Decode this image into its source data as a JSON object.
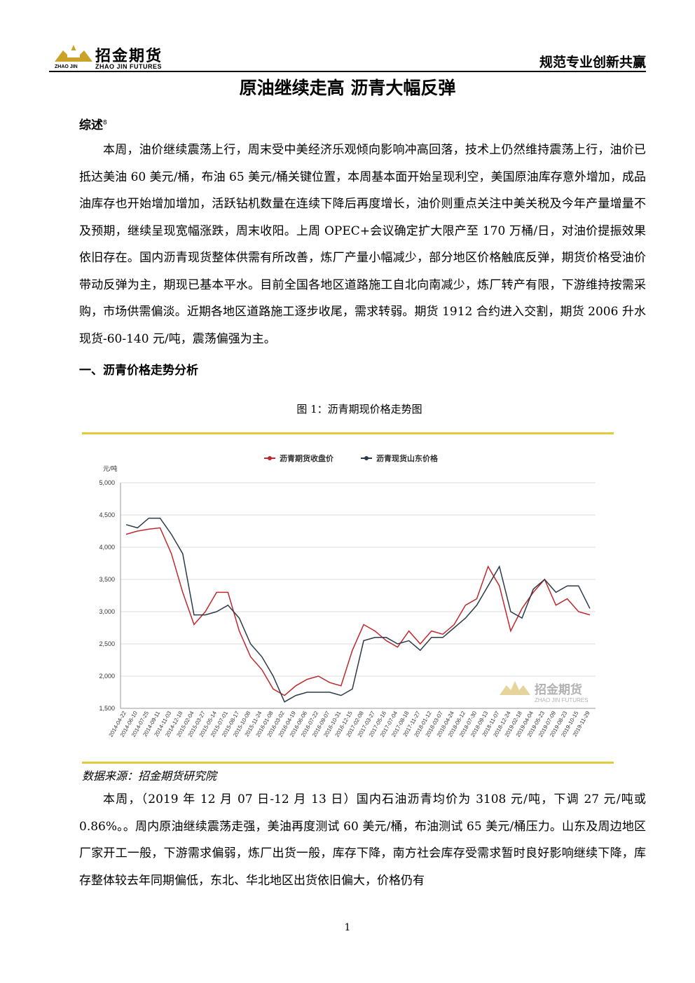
{
  "header": {
    "logo_cn": "招金期货",
    "logo_en": "ZHAO JIN FUTURES",
    "logo_small": "ZHAO JIN",
    "slogan": "规范专业创新共赢"
  },
  "title": "原油继续走高 沥青大幅反弹",
  "summary_heading": "综述",
  "summary_mark": "8",
  "summary": "本周，油价继续震荡上行，周末受中美经济乐观倾向影响冲高回落，技术上仍然维持震荡上行，油价已抵达美油 60 美元/桶，布油 65 美元/桶关键位置，本周基本面开始呈现利空，美国原油库存意外增加，成品油库存也开始增加增加，活跃钻机数量在连续下降后再度增长，油价则重点关注中美关税及今年产量增量不及预期，继续呈现宽幅涨跌，周末收阳。上周 OPEC+会议确定扩大限产至 170 万桶/日，对油价提振效果依旧存在。国内沥青现货整体供需有所改善，炼厂产量小幅减少，部分地区价格触底反弹，期货价格受油价带动反弹为主，期现已基本平水。目前全国各地区道路施工自北向南减少，炼厂转产有限，下游维持按需采购，市场供需偏淡。近期各地区道路施工逐步收尾，需求转弱。期货 1912 合约进入交割，期货 2006 升水现货-60-140 元/吨，震荡偏强为主。",
  "section_heading": "一、沥青价格走势分析",
  "figure_caption": "图 1：沥青期现价格走势图",
  "source": "数据来源：招金期货研究院",
  "body": "本周，（2019 年 12 月 07 日-12 月 13 日）国内石油沥青均价为 3108 元/吨，下调 27 元/吨或 0.86%。。周内原油继续震荡走强，美油再度测试 60 美元/桶，布油测试 65 美元/桶压力。山东及周边地区厂家开工一般，下游需求偏弱，炼厂出货一般，库存下降，南方社会库存受需求暂时良好影响继续下降，库存整体较去年同期偏低，东北、华北地区出货依旧偏大，价格仍有",
  "page_number": "1",
  "chart_data": {
    "type": "line",
    "y_unit": "元/吨",
    "watermark_cn": "招金期货",
    "watermark_en": "ZHAO JIN FUTURES",
    "categories": [
      "2014-04-22",
      "2014-06-10",
      "2014-07-25",
      "2014-09-11",
      "2014-11-03",
      "2014-12-18",
      "2015-02-04",
      "2015-03-27",
      "2015-05-14",
      "2015-07-01",
      "2015-08-17",
      "2015-10-08",
      "2015-11-24",
      "2016-01-08",
      "2016-03-02",
      "2016-04-19",
      "2016-06-06",
      "2016-07-22",
      "2016-09-07",
      "2016-10-31",
      "2016-12-15",
      "2017-02-08",
      "2017-03-27",
      "2017-05-16",
      "2017-07-04",
      "2017-08-18",
      "2017-11-27",
      "2018-01-12",
      "2018-03-07",
      "2018-04-24",
      "2018-06-12",
      "2018-07-30",
      "2018-09-13",
      "2018-11-07",
      "2018-12-24",
      "2019-02-18",
      "2019-04-04",
      "2019-05-23",
      "2019-07-09",
      "2019-08-23",
      "2019-10-15",
      "2019-11-29"
    ],
    "series": [
      {
        "name": "沥青期货收盘价",
        "color": "#c0282d",
        "values": [
          4200,
          4250,
          4280,
          4300,
          3900,
          3300,
          2800,
          3000,
          3300,
          3300,
          2700,
          2300,
          2100,
          1800,
          1700,
          1850,
          1950,
          2000,
          1900,
          1850,
          2400,
          2800,
          2700,
          2550,
          2450,
          2700,
          2500,
          2700,
          2650,
          2800,
          3100,
          3200,
          3700,
          3400,
          2700,
          3050,
          3300,
          3500,
          3100,
          3200,
          3000,
          2950
        ]
      },
      {
        "name": "沥青现货山东价格",
        "color": "#2b3a4a",
        "values": [
          4350,
          4300,
          4450,
          4450,
          4200,
          3900,
          2950,
          2950,
          3000,
          3100,
          2900,
          2500,
          2300,
          2000,
          1600,
          1700,
          1750,
          1750,
          1750,
          1700,
          1800,
          2550,
          2600,
          2600,
          2500,
          2550,
          2400,
          2600,
          2600,
          2750,
          2900,
          3100,
          3400,
          3700,
          3000,
          2900,
          3350,
          3500,
          3300,
          3400,
          3400,
          3050
        ]
      }
    ],
    "ylim": [
      1500,
      5000
    ],
    "yticks": [
      {
        "value": 1500,
        "label": "1,500"
      },
      {
        "value": 2000,
        "label": "2,000"
      },
      {
        "value": 2500,
        "label": "2,500"
      },
      {
        "value": 3000,
        "label": "3,000"
      },
      {
        "value": 3500,
        "label": "3,500"
      },
      {
        "value": 4000,
        "label": "4,000"
      },
      {
        "value": 4500,
        "label": "4,500"
      },
      {
        "value": 5000,
        "label": "5,000"
      }
    ],
    "grid": true
  }
}
